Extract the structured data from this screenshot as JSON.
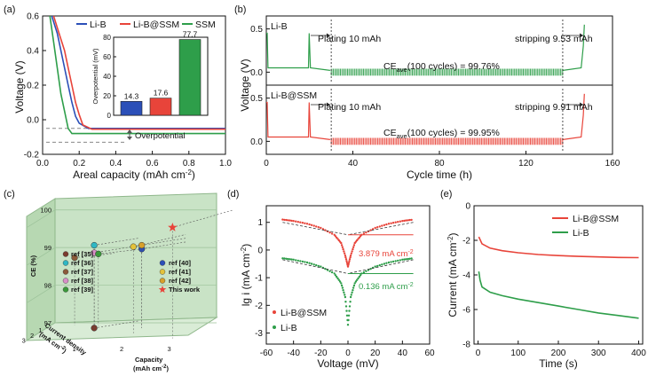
{
  "panels": {
    "a": {
      "label": "(a)",
      "xlabel": "Areal capacity (mAh cm",
      "xlabel_sup": "-2",
      "xlabel_end": ")",
      "ylabel": "Voltage (V)",
      "xticks": [
        "0.0",
        "0.2",
        "0.4",
        "0.6",
        "0.8",
        "1.0"
      ],
      "yticks": [
        "0.6",
        "0.4",
        "0.2",
        "0.0",
        "-0.2"
      ],
      "annotation": "Overpotential",
      "legend": [
        {
          "label": "Li-B",
          "color": "#2b4fb8"
        },
        {
          "label": "Li-B@SSM",
          "color": "#e8443a"
        },
        {
          "label": "SSM",
          "color": "#2e9e4a"
        }
      ],
      "inset": {
        "ylabel": "Overpotential (mV)",
        "yticks": [
          "0",
          "20",
          "40",
          "60",
          "80"
        ],
        "bars": [
          {
            "label": "14.3",
            "value": 14.3,
            "color": "#2b4fb8"
          },
          {
            "label": "17.6",
            "value": 17.6,
            "color": "#e8443a"
          },
          {
            "label": "77.7",
            "value": 77.7,
            "color": "#2e9e4a"
          }
        ]
      }
    },
    "b": {
      "label": "(b)",
      "xlabel": "Cycle time (h)",
      "ylabel": "Voltage (V)",
      "xticks": [
        "0",
        "40",
        "80",
        "120",
        "160"
      ],
      "top": {
        "name": "Li-B",
        "plating": "Plating 10 mAh",
        "stripping": "stripping 9.53 mAh",
        "ce_prefix": "CE",
        "ce_sub": "ave",
        "ce_suffix": "(100 cycles) = 99.76%",
        "yticks": [
          "0.5",
          "0.0"
        ],
        "color": "#2e9e4a"
      },
      "bottom": {
        "name": "Li-B@SSM",
        "plating": "Plating 10 mAh",
        "stripping": "stripping 9.91 mAh",
        "ce_prefix": "CE",
        "ce_sub": "ave",
        "ce_suffix": "(100 cycles) = 99.95%",
        "yticks": [
          "0.5",
          "0.0"
        ],
        "color": "#e8443a"
      }
    },
    "c": {
      "label": "(c)",
      "zlabel": "CE (%)",
      "xlabel": "Capacity",
      "xlabel2": "(mAh cm",
      "xlabel2_sup": "-2",
      "xlabel2_end": ")",
      "ylabel": "Current density",
      "ylabel2": "(mA cm",
      "ylabel2_sup": "-2",
      "ylabel2_end": ")",
      "zticks": [
        "100",
        "99",
        "98",
        "97"
      ],
      "xticks": [
        "1",
        "2",
        "3"
      ],
      "yticks": [
        "1",
        "2",
        "3"
      ],
      "legend": [
        {
          "label": "ref [35]",
          "color": "#7a3b2e"
        },
        {
          "label": "ref [36]",
          "color": "#2fb7c4"
        },
        {
          "label": "ref [37]",
          "color": "#8a5a3a"
        },
        {
          "label": "ref [38]",
          "color": "#d88fc7"
        },
        {
          "label": "ref [39]",
          "color": "#3a9a3a"
        },
        {
          "label": "ref [40]",
          "color": "#2b4fb8"
        },
        {
          "label": "ref [41]",
          "color": "#e3c23a"
        },
        {
          "label": "ref [42]",
          "color": "#d8a02a"
        },
        {
          "label": "This work",
          "color": "#e8443a"
        }
      ]
    },
    "d": {
      "label": "(d)",
      "xlabel": "Voltage (mV)",
      "ylabel": "lg i (mA cm",
      "ylabel_sup": "-2",
      "ylabel_end": ")",
      "xticks": [
        "-60",
        "-40",
        "-20",
        "0",
        "20",
        "40",
        "60"
      ],
      "yticks": [
        "1",
        "0",
        "-1",
        "-2",
        "-3"
      ],
      "annot_top": "3.879 mA cm",
      "annot_top_sup": "-2",
      "annot_bottom": "0.136 mA cm",
      "annot_bottom_sup": "-2",
      "legend": [
        {
          "label": "Li-B@SSM",
          "color": "#e8443a"
        },
        {
          "label": "Li-B",
          "color": "#2e9e4a"
        }
      ]
    },
    "e": {
      "label": "(e)",
      "xlabel": "Time (s)",
      "ylabel": "Current (mA cm",
      "ylabel_sup": "-2",
      "ylabel_end": ")",
      "xticks": [
        "0",
        "100",
        "200",
        "300",
        "400"
      ],
      "yticks": [
        "0",
        "-2",
        "-4",
        "-6",
        "-8"
      ],
      "legend": [
        {
          "label": "Li-B@SSM",
          "color": "#e8443a"
        },
        {
          "label": "Li-B",
          "color": "#2e9e4a"
        }
      ]
    }
  },
  "chart_data": [
    {
      "panel": "a",
      "type": "line",
      "title": "",
      "xlabel": "Areal capacity (mAh cm-2)",
      "ylabel": "Voltage (V)",
      "xlim": [
        0,
        1.0
      ],
      "ylim": [
        -0.2,
        0.6
      ],
      "series": [
        {
          "name": "Li-B",
          "x": [
            0.05,
            0.08,
            0.1,
            0.12,
            0.14,
            0.16,
            0.18,
            0.2,
            0.25,
            0.5,
            1.0
          ],
          "y": [
            0.6,
            0.5,
            0.4,
            0.3,
            0.2,
            0.1,
            0.02,
            -0.02,
            -0.05,
            -0.05,
            -0.05
          ]
        },
        {
          "name": "Li-B@SSM",
          "x": [
            0.06,
            0.09,
            0.12,
            0.14,
            0.16,
            0.18,
            0.2,
            0.22,
            0.27,
            0.5,
            1.0
          ],
          "y": [
            0.6,
            0.5,
            0.4,
            0.3,
            0.2,
            0.1,
            0.03,
            -0.03,
            -0.055,
            -0.055,
            -0.055
          ]
        },
        {
          "name": "SSM",
          "x": [
            0.04,
            0.06,
            0.08,
            0.1,
            0.12,
            0.14,
            0.16,
            0.2,
            0.5,
            1.0
          ],
          "y": [
            0.6,
            0.45,
            0.3,
            0.15,
            0.05,
            -0.05,
            -0.08,
            -0.08,
            -0.08,
            -0.08
          ]
        }
      ],
      "inset": {
        "type": "bar",
        "categories": [
          "Li-B",
          "Li-B@SSM",
          "SSM"
        ],
        "values": [
          14.3,
          17.6,
          77.7
        ],
        "ylabel": "Overpotential (mV)",
        "ylim": [
          0,
          80
        ]
      }
    },
    {
      "panel": "b",
      "type": "line",
      "xlabel": "Cycle time (h)",
      "ylabel": "Voltage (V)",
      "xlim": [
        0,
        160
      ],
      "series": [
        {
          "name": "Li-B",
          "x": [
            0,
            1,
            10,
            20,
            21,
            30,
            137,
            146,
            147
          ],
          "y": [
            0.45,
            0.05,
            0.05,
            0.45,
            0.05,
            0.0,
            0.0,
            0.05,
            0.55
          ]
        },
        {
          "name": "Li-B@SSM",
          "x": [
            0,
            1,
            10,
            20,
            21,
            30,
            137,
            146,
            147
          ],
          "y": [
            0.45,
            0.05,
            0.05,
            0.45,
            0.05,
            0.0,
            0.0,
            0.05,
            0.55
          ]
        }
      ],
      "cycles": 100
    },
    {
      "panel": "c",
      "type": "scatter",
      "xlabel": "Capacity (mAh cm-2)",
      "ylabel": "Current density (mA cm-2)",
      "zlabel": "CE (%)",
      "zlim": [
        97,
        100
      ],
      "points": [
        {
          "name": "ref [35]",
          "capacity": 1.0,
          "current": 1.0,
          "ce": 97.0
        },
        {
          "name": "ref [36]",
          "capacity": 1.0,
          "current": 1.0,
          "ce": 99.2
        },
        {
          "name": "ref [37]",
          "capacity": 0.5,
          "current": 0.5,
          "ce": 98.8
        },
        {
          "name": "ref [38]",
          "capacity": 1.0,
          "current": 1.0,
          "ce": 99.0
        },
        {
          "name": "ref [39]",
          "capacity": 1.0,
          "current": 0.5,
          "ce": 98.9
        },
        {
          "name": "ref [40]",
          "capacity": 2.0,
          "current": 1.0,
          "ce": 99.1
        },
        {
          "name": "ref [41]",
          "capacity": 2.0,
          "current": 2.0,
          "ce": 99.3
        },
        {
          "name": "ref [42]",
          "capacity": 2.0,
          "current": 1.0,
          "ce": 99.2
        },
        {
          "name": "This work",
          "capacity": 3.0,
          "current": 3.0,
          "ce": 99.95
        }
      ]
    },
    {
      "panel": "d",
      "type": "line",
      "xlabel": "Voltage (mV)",
      "ylabel": "lg i (mA cm-2)",
      "xlim": [
        -60,
        60
      ],
      "ylim": [
        -3.4,
        1.6
      ],
      "series": [
        {
          "name": "Li-B@SSM",
          "x": [
            -48,
            -40,
            -30,
            -20,
            -10,
            -5,
            -2,
            0,
            2,
            5,
            10,
            20,
            30,
            40,
            48
          ],
          "y": [
            1.1,
            1.05,
            0.95,
            0.8,
            0.55,
            0.25,
            -0.2,
            -0.6,
            -0.2,
            0.25,
            0.55,
            0.8,
            0.95,
            1.05,
            1.1
          ]
        },
        {
          "name": "Li-B",
          "x": [
            -48,
            -40,
            -30,
            -20,
            -10,
            -5,
            -2,
            0,
            2,
            5,
            10,
            20,
            30,
            40,
            48
          ],
          "y": [
            -0.3,
            -0.35,
            -0.45,
            -0.6,
            -0.85,
            -1.2,
            -1.7,
            -2.7,
            -1.7,
            -1.2,
            -0.85,
            -0.6,
            -0.45,
            -0.35,
            -0.3
          ]
        }
      ],
      "exchange_current": {
        "Li-B@SSM": 3.879,
        "Li-B": 0.136
      }
    },
    {
      "panel": "e",
      "type": "line",
      "xlabel": "Time (s)",
      "ylabel": "Current (mA cm-2)",
      "xlim": [
        0,
        400
      ],
      "ylim": [
        -8,
        0
      ],
      "series": [
        {
          "name": "Li-B@SSM",
          "x": [
            2,
            10,
            30,
            60,
            100,
            150,
            200,
            250,
            300,
            350,
            400
          ],
          "y": [
            -1.8,
            -2.2,
            -2.45,
            -2.6,
            -2.72,
            -2.82,
            -2.88,
            -2.93,
            -2.96,
            -2.99,
            -3.0
          ]
        },
        {
          "name": "Li-B",
          "x": [
            2,
            5,
            10,
            30,
            60,
            100,
            150,
            200,
            250,
            300,
            350,
            400
          ],
          "y": [
            -3.8,
            -4.3,
            -4.7,
            -5.0,
            -5.2,
            -5.4,
            -5.6,
            -5.8,
            -6.0,
            -6.2,
            -6.35,
            -6.5
          ]
        }
      ]
    }
  ]
}
